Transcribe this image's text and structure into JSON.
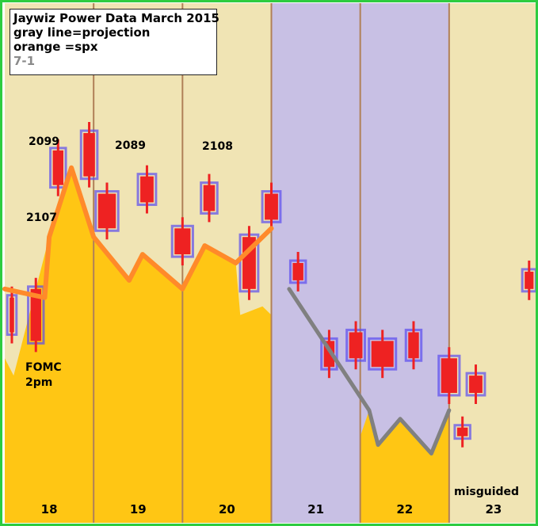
{
  "title": "Jaywiz Power Data March 2015",
  "legend": {
    "line1": "gray line=projection",
    "line2": "orange =spx",
    "line3": "7-1"
  },
  "colors": {
    "background_tan": "#f0e4b4",
    "background_purple": "#c8c0e4",
    "power_fill": "#ffc614",
    "spx_line": "#ff8a2a",
    "projection_line": "#808080",
    "candle_red": "#ee2222",
    "candle_outline": "#5a4cf0",
    "divider": "#b08058",
    "frame": "#2ecc40"
  },
  "annotations": {
    "price_2099": "2099",
    "price_2089": "2089",
    "price_2108": "2108",
    "price_2107": "2107",
    "fomc_line1": "FOMC",
    "fomc_line2": "2pm",
    "misguided": "misguided"
  },
  "chart_data": {
    "type": "area",
    "title": "Jaywiz Power Data March 2015",
    "categories": [
      "18",
      "19",
      "20",
      "21",
      "22",
      "23"
    ],
    "shaded_days": [
      "21",
      "22"
    ],
    "series": [
      {
        "name": "spx",
        "color": "#ff8a2a",
        "points": [
          [
            0.0,
            2097
          ],
          [
            0.45,
            2096
          ],
          [
            0.5,
            2103
          ],
          [
            0.75,
            2111
          ],
          [
            1.0,
            2103
          ],
          [
            1.4,
            2098
          ],
          [
            1.55,
            2101
          ],
          [
            2.0,
            2097
          ],
          [
            2.25,
            2102
          ],
          [
            2.6,
            2100
          ],
          [
            3.0,
            2104
          ]
        ]
      },
      {
        "name": "projection",
        "color": "#808080",
        "points": [
          [
            3.2,
            2097
          ],
          [
            4.1,
            2083
          ],
          [
            4.2,
            2079
          ],
          [
            4.45,
            2082
          ],
          [
            4.8,
            2078
          ],
          [
            5.0,
            2083
          ]
        ]
      }
    ],
    "power_area": [
      [
        0.0,
        2089
      ],
      [
        0.1,
        2087
      ],
      [
        0.5,
        2103
      ],
      [
        0.75,
        2111
      ],
      [
        1.0,
        2103
      ],
      [
        1.4,
        2098
      ],
      [
        1.55,
        2101
      ],
      [
        2.0,
        2097
      ],
      [
        2.25,
        2102
      ],
      [
        2.6,
        2100
      ],
      [
        2.65,
        2094
      ],
      [
        2.9,
        2095
      ],
      [
        3.0,
        2094
      ],
      [
        3.0,
        2070
      ],
      [
        0.0,
        2070
      ]
    ],
    "power_area_23": [
      [
        4.0,
        2080
      ],
      [
        4.1,
        2083
      ],
      [
        4.2,
        2079
      ],
      [
        4.45,
        2082
      ],
      [
        4.8,
        2078
      ],
      [
        5.0,
        2083
      ],
      [
        5.0,
        2070
      ],
      [
        4.0,
        2070
      ]
    ],
    "candles": [
      {
        "x": 0.08,
        "top": 2096,
        "bottom": 2092,
        "w": 0.05
      },
      {
        "x": 0.35,
        "top": 2097,
        "bottom": 2091,
        "w": 0.12
      },
      {
        "x": 0.6,
        "top": 2113,
        "bottom": 2109,
        "w": 0.12
      },
      {
        "x": 0.95,
        "top": 2115,
        "bottom": 2110,
        "w": 0.13
      },
      {
        "x": 1.15,
        "top": 2108,
        "bottom": 2104,
        "w": 0.2
      },
      {
        "x": 1.6,
        "top": 2110,
        "bottom": 2107,
        "w": 0.15
      },
      {
        "x": 2.0,
        "top": 2104,
        "bottom": 2101,
        "w": 0.18
      },
      {
        "x": 2.3,
        "top": 2109,
        "bottom": 2106,
        "w": 0.13
      },
      {
        "x": 2.75,
        "top": 2103,
        "bottom": 2097,
        "w": 0.15
      },
      {
        "x": 3.0,
        "top": 2108,
        "bottom": 2105,
        "w": 0.15
      },
      {
        "x": 3.3,
        "top": 2100,
        "bottom": 2098,
        "w": 0.12
      },
      {
        "x": 3.65,
        "top": 2091,
        "bottom": 2088,
        "w": 0.12
      },
      {
        "x": 3.95,
        "top": 2092,
        "bottom": 2089,
        "w": 0.15
      },
      {
        "x": 4.25,
        "top": 2091,
        "bottom": 2088,
        "w": 0.25
      },
      {
        "x": 4.6,
        "top": 2092,
        "bottom": 2089,
        "w": 0.12
      },
      {
        "x": 5.0,
        "top": 2089,
        "bottom": 2085,
        "w": 0.18
      },
      {
        "x": 5.3,
        "top": 2087,
        "bottom": 2085,
        "w": 0.15
      },
      {
        "x": 5.15,
        "top": 2081,
        "bottom": 2080,
        "w": 0.12
      },
      {
        "x": 5.9,
        "top": 2099,
        "bottom": 2097,
        "w": 0.1
      }
    ],
    "ylim": [
      2070,
      2130
    ],
    "xlim": [
      0,
      6
    ]
  }
}
